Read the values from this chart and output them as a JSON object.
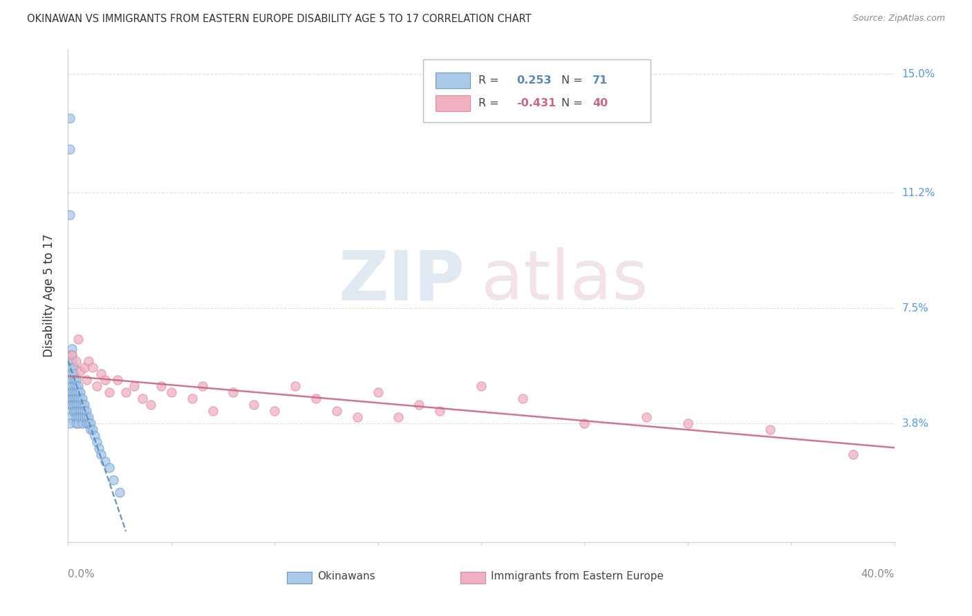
{
  "title": "OKINAWAN VS IMMIGRANTS FROM EASTERN EUROPE DISABILITY AGE 5 TO 17 CORRELATION CHART",
  "source": "Source: ZipAtlas.com",
  "ylabel": "Disability Age 5 to 17",
  "ytick_vals": [
    0.0,
    0.038,
    0.075,
    0.112,
    0.15
  ],
  "ytick_labels": [
    "",
    "3.8%",
    "7.5%",
    "11.2%",
    "15.0%"
  ],
  "xtick_vals": [
    0.0,
    0.05,
    0.1,
    0.15,
    0.2,
    0.25,
    0.3,
    0.35,
    0.4
  ],
  "xlim": [
    0.0,
    0.4
  ],
  "ylim": [
    0.0,
    0.158
  ],
  "r_blue": "0.253",
  "n_blue": "71",
  "r_pink": "-0.431",
  "n_pink": "40",
  "blue_face": "#aac8e8",
  "blue_edge": "#6699cc",
  "blue_line": "#5588bb",
  "pink_face": "#f0b0c0",
  "pink_edge": "#dd8899",
  "pink_line": "#cc6680",
  "tick_label_color": "#5599dd",
  "grid_color": "#dddddd",
  "text_color": "#333333",
  "source_color": "#888888",
  "blue_x": [
    0.001,
    0.001,
    0.001,
    0.001,
    0.001,
    0.001,
    0.001,
    0.001,
    0.001,
    0.002,
    0.002,
    0.002,
    0.002,
    0.002,
    0.002,
    0.002,
    0.002,
    0.002,
    0.002,
    0.003,
    0.003,
    0.003,
    0.003,
    0.003,
    0.003,
    0.003,
    0.003,
    0.004,
    0.004,
    0.004,
    0.004,
    0.004,
    0.004,
    0.004,
    0.004,
    0.005,
    0.005,
    0.005,
    0.005,
    0.005,
    0.005,
    0.005,
    0.006,
    0.006,
    0.006,
    0.006,
    0.006,
    0.007,
    0.007,
    0.007,
    0.007,
    0.007,
    0.008,
    0.008,
    0.008,
    0.009,
    0.009,
    0.009,
    0.01,
    0.01,
    0.011,
    0.011,
    0.012,
    0.013,
    0.014,
    0.015,
    0.016,
    0.018,
    0.02,
    0.022,
    0.025
  ],
  "blue_y": [
    0.136,
    0.126,
    0.105,
    0.048,
    0.046,
    0.044,
    0.042,
    0.04,
    0.038,
    0.062,
    0.06,
    0.058,
    0.056,
    0.054,
    0.052,
    0.05,
    0.048,
    0.046,
    0.044,
    0.056,
    0.054,
    0.052,
    0.05,
    0.048,
    0.046,
    0.044,
    0.042,
    0.052,
    0.05,
    0.048,
    0.046,
    0.044,
    0.042,
    0.04,
    0.038,
    0.05,
    0.048,
    0.046,
    0.044,
    0.042,
    0.04,
    0.038,
    0.048,
    0.046,
    0.044,
    0.042,
    0.04,
    0.046,
    0.044,
    0.042,
    0.04,
    0.038,
    0.044,
    0.042,
    0.04,
    0.042,
    0.04,
    0.038,
    0.04,
    0.038,
    0.038,
    0.036,
    0.036,
    0.034,
    0.032,
    0.03,
    0.028,
    0.026,
    0.024,
    0.02,
    0.016
  ],
  "pink_x": [
    0.002,
    0.004,
    0.005,
    0.006,
    0.008,
    0.009,
    0.01,
    0.012,
    0.014,
    0.016,
    0.018,
    0.02,
    0.024,
    0.028,
    0.032,
    0.036,
    0.04,
    0.045,
    0.05,
    0.06,
    0.065,
    0.07,
    0.08,
    0.09,
    0.1,
    0.11,
    0.12,
    0.13,
    0.14,
    0.15,
    0.16,
    0.17,
    0.18,
    0.2,
    0.22,
    0.25,
    0.28,
    0.3,
    0.34,
    0.38
  ],
  "pink_y": [
    0.06,
    0.058,
    0.065,
    0.055,
    0.056,
    0.052,
    0.058,
    0.056,
    0.05,
    0.054,
    0.052,
    0.048,
    0.052,
    0.048,
    0.05,
    0.046,
    0.044,
    0.05,
    0.048,
    0.046,
    0.05,
    0.042,
    0.048,
    0.044,
    0.042,
    0.05,
    0.046,
    0.042,
    0.04,
    0.048,
    0.04,
    0.044,
    0.042,
    0.05,
    0.046,
    0.038,
    0.04,
    0.038,
    0.036,
    0.028
  ]
}
